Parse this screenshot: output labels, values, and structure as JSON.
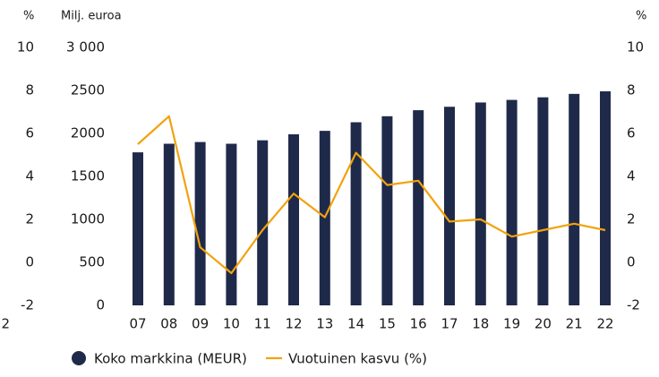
{
  "chart_data": {
    "type": "bar_line",
    "y_label": "Milj. euroa",
    "y2_label": "%",
    "categories": [
      "07",
      "08",
      "09",
      "10",
      "11",
      "12",
      "13",
      "14",
      "15",
      "16",
      "17",
      "18",
      "19",
      "20",
      "21",
      "22"
    ],
    "series": [
      {
        "name": "Koko markkina (MEUR)",
        "type": "bar",
        "color": "#1f2a4a",
        "values": [
          1780,
          1880,
          1900,
          1880,
          1920,
          1990,
          2030,
          2130,
          2200,
          2270,
          2310,
          2360,
          2390,
          2420,
          2460,
          2490
        ]
      },
      {
        "name": "Vuotuinen kasvu (%)",
        "type": "line",
        "color": "#f2a20c",
        "axis": "y2",
        "values": [
          5.5,
          6.8,
          0.7,
          -0.5,
          1.5,
          3.2,
          2.1,
          5.1,
          3.6,
          3.8,
          1.9,
          2.0,
          1.2,
          1.5,
          1.8,
          1.5
        ]
      }
    ],
    "ylim": [
      0,
      3000
    ],
    "yticks": [
      0,
      500,
      1000,
      1500,
      2000,
      2500,
      {
        "value": 3000,
        "label": "3 000"
      }
    ],
    "y2lim": [
      -2,
      10
    ],
    "y2ticks": [
      -2,
      0,
      2,
      4,
      6,
      8,
      10
    ],
    "grid": false
  }
}
